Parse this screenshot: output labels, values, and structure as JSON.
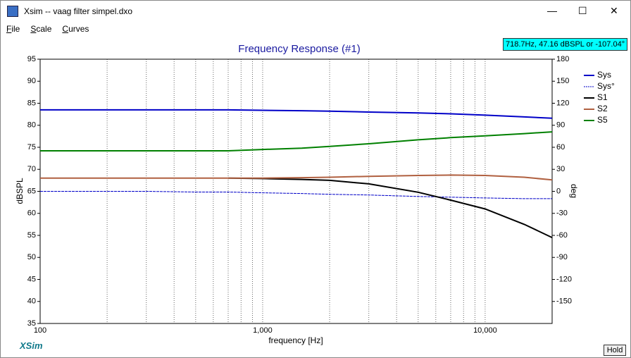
{
  "window": {
    "title": "Xsim -- vaag filter simpel.dxo"
  },
  "menu": [
    "File",
    "Scale",
    "Curves"
  ],
  "readout": "718.7Hz, 47.16 dBSPL or -107.04°",
  "logo": "XSim",
  "button": "Hold",
  "chart_data": {
    "type": "line",
    "title": "Frequency Response (#1)",
    "xlabel": "frequency [Hz]",
    "ylabel": "dBSPL",
    "y2label": "deg",
    "log_x": true,
    "x": [
      100,
      200,
      300,
      500,
      700,
      1000,
      1500,
      2000,
      3000,
      5000,
      7000,
      10000,
      15000,
      20000
    ],
    "xlim": [
      100,
      20000
    ],
    "xticks": [
      100,
      {
        "value": 1000,
        "label": "1,000"
      },
      {
        "value": 10000,
        "label": "10,000"
      }
    ],
    "xminor": [
      200,
      300,
      400,
      500,
      600,
      700,
      800,
      900,
      2000,
      3000,
      4000,
      5000,
      6000,
      7000,
      8000,
      9000
    ],
    "ylim": [
      35,
      95
    ],
    "yticks": [
      35,
      40,
      45,
      50,
      55,
      60,
      65,
      70,
      75,
      80,
      85,
      90,
      95
    ],
    "y2lim": [
      -180,
      180
    ],
    "y2ticks": [
      -150,
      -120,
      -90,
      -60,
      -30,
      0,
      30,
      60,
      90,
      120,
      150,
      180
    ],
    "legend": "upper right",
    "series": [
      {
        "name": "Sys",
        "color": "#0000c8",
        "width": 2,
        "values": [
          83.5,
          83.5,
          83.5,
          83.5,
          83.5,
          83.4,
          83.3,
          83.2,
          83.0,
          82.8,
          82.6,
          82.3,
          81.9,
          81.6
        ]
      },
      {
        "name": "Sys°",
        "color": "#0000c8",
        "width": 1,
        "dashed": true,
        "axis": "y2",
        "values": [
          0,
          0,
          0,
          -1,
          -1,
          -2,
          -3,
          -4,
          -5,
          -7,
          -8,
          -9,
          -10,
          -10
        ]
      },
      {
        "name": "S1",
        "color": "#000000",
        "width": 2,
        "values": [
          null,
          null,
          null,
          null,
          68.0,
          67.9,
          67.7,
          67.5,
          66.7,
          64.8,
          63.0,
          61.0,
          57.5,
          54.5
        ]
      },
      {
        "name": "S2",
        "color": "#b06040",
        "width": 2,
        "values": [
          68.0,
          68.0,
          68.0,
          68.0,
          68.0,
          68.0,
          68.1,
          68.2,
          68.4,
          68.6,
          68.7,
          68.6,
          68.2,
          67.6
        ]
      },
      {
        "name": "S5",
        "color": "#008000",
        "width": 2,
        "values": [
          74.2,
          74.2,
          74.2,
          74.2,
          74.2,
          74.5,
          74.8,
          75.2,
          75.8,
          76.7,
          77.2,
          77.6,
          78.1,
          78.5
        ]
      }
    ]
  }
}
